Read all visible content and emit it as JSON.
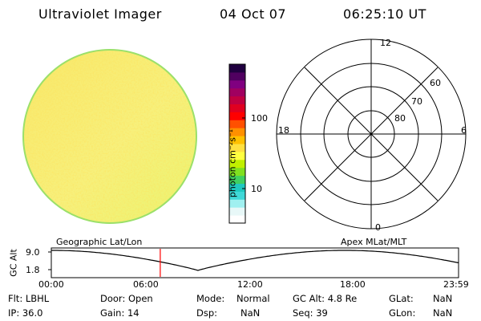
{
  "header": {
    "instrument": "Ultraviolet Imager",
    "date": "04 Oct 07",
    "time": "06:25:10 UT"
  },
  "colorbar": {
    "unit_label": "photon cm⁻²s⁻¹",
    "ticks": [
      "100",
      "10"
    ],
    "colors": [
      "#ffffff",
      "#e8f8f8",
      "#a0f0f0",
      "#40d8d8",
      "#20c8c0",
      "#40d060",
      "#80e020",
      "#c0f000",
      "#ffff40",
      "#ffe040",
      "#ffc000",
      "#ff9000",
      "#ff5000",
      "#ff0000",
      "#e00020",
      "#c00040",
      "#a00060",
      "#800080",
      "#500060",
      "#200040"
    ]
  },
  "polar": {
    "labels_mlt": [
      "12",
      "18",
      "6",
      "0"
    ],
    "labels_mlat": [
      "60",
      "70",
      "80"
    ]
  },
  "timeline": {
    "ylabel": "GC Alt",
    "ymax_label": "9.0",
    "ymin_label": "1.8",
    "left_caption": "Geographic Lat/Lon",
    "right_caption": "Apex MLat/MLT",
    "xticks": [
      "00:00",
      "06:00",
      "12:00",
      "18:00",
      "23:59"
    ],
    "current_time_fraction": 0.2675
  },
  "info": {
    "flt": "Flt: LBHL",
    "ip": "IP: 36.0",
    "door": "Door: Open",
    "gain": "Gain: 14",
    "mode_label": "Mode:",
    "mode_value": "Normal",
    "dsp_label": "Dsp:",
    "dsp_value": "NaN",
    "gcalt": "GC Alt: 4.8 Re",
    "seq": "Seq: 39",
    "glat_label": "GLat:",
    "glat_value": "NaN",
    "glon_label": "GLon:",
    "glon_value": "NaN"
  },
  "colors": {
    "disk_base": "#f6f07a",
    "disk_edge": "#9be06a"
  }
}
